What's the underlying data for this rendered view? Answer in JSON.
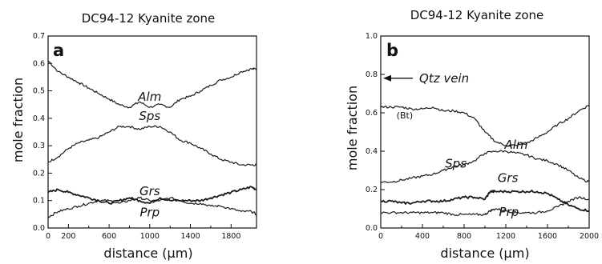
{
  "chart_data": [
    {
      "type": "line",
      "panel_label": "a",
      "title": "DC94-12 Kyanite zone",
      "xlabel": "distance (μm)",
      "ylabel": "mole fraction",
      "xlim": [
        0,
        2050
      ],
      "ylim": [
        0,
        0.7
      ],
      "xticks": [
        "0",
        "200",
        "600",
        "1000",
        "1400",
        "1800"
      ],
      "xtick_values": [
        0,
        200,
        600,
        1000,
        1400,
        1800
      ],
      "xminor_values": [
        400,
        800,
        1200,
        1600
      ],
      "yticks": [
        "0.0",
        "0.1",
        "0.2",
        "0.3",
        "0.4",
        "0.5",
        "0.6",
        "0.7"
      ],
      "ytick_values": [
        0,
        0.1,
        0.2,
        0.3,
        0.4,
        0.5,
        0.6,
        0.7
      ],
      "grid": false,
      "series": [
        {
          "name": "Alm",
          "x": [
            0,
            100,
            200,
            300,
            400,
            500,
            600,
            700,
            800,
            900,
            1000,
            1100,
            1200,
            1300,
            1400,
            1500,
            1600,
            1700,
            1800,
            1900,
            2000,
            2050
          ],
          "values": [
            0.61,
            0.57,
            0.55,
            0.53,
            0.51,
            0.49,
            0.47,
            0.45,
            0.44,
            0.46,
            0.44,
            0.45,
            0.44,
            0.47,
            0.48,
            0.5,
            0.52,
            0.54,
            0.55,
            0.57,
            0.58,
            0.58
          ]
        },
        {
          "name": "Sps",
          "x": [
            0,
            100,
            200,
            300,
            400,
            500,
            600,
            700,
            800,
            900,
            1000,
            1100,
            1200,
            1300,
            1400,
            1500,
            1600,
            1700,
            1800,
            1900,
            2000,
            2050
          ],
          "values": [
            0.24,
            0.26,
            0.29,
            0.31,
            0.32,
            0.33,
            0.35,
            0.37,
            0.37,
            0.36,
            0.37,
            0.37,
            0.35,
            0.32,
            0.31,
            0.29,
            0.27,
            0.25,
            0.24,
            0.23,
            0.23,
            0.23
          ]
        },
        {
          "name": "Grs",
          "x": [
            0,
            100,
            200,
            300,
            400,
            500,
            600,
            700,
            800,
            900,
            1000,
            1100,
            1200,
            1300,
            1400,
            1500,
            1600,
            1700,
            1800,
            1900,
            2000,
            2050
          ],
          "values": [
            0.13,
            0.14,
            0.13,
            0.12,
            0.11,
            0.1,
            0.09,
            0.1,
            0.11,
            0.1,
            0.09,
            0.11,
            0.1,
            0.1,
            0.1,
            0.1,
            0.11,
            0.12,
            0.13,
            0.14,
            0.15,
            0.14
          ]
        },
        {
          "name": "Prp",
          "x": [
            0,
            100,
            200,
            300,
            400,
            500,
            600,
            700,
            800,
            900,
            1000,
            1100,
            1200,
            1300,
            1400,
            1500,
            1600,
            1700,
            1800,
            1900,
            2000,
            2050
          ],
          "values": [
            0.04,
            0.06,
            0.07,
            0.08,
            0.09,
            0.1,
            0.1,
            0.09,
            0.1,
            0.11,
            0.1,
            0.1,
            0.11,
            0.1,
            0.09,
            0.09,
            0.08,
            0.08,
            0.07,
            0.06,
            0.06,
            0.05
          ]
        }
      ]
    },
    {
      "type": "line",
      "panel_label": "b",
      "title": "DC94-12 Kyanite zone",
      "xlabel": "distance (μm)",
      "ylabel": "mole fraction",
      "xlim": [
        0,
        2000
      ],
      "ylim": [
        0,
        1.0
      ],
      "xticks": [
        "0",
        "400",
        "800",
        "1200",
        "1600",
        "2000"
      ],
      "xtick_values": [
        0,
        400,
        800,
        1200,
        1600,
        2000
      ],
      "xminor_values": [
        200,
        600,
        1000,
        1400,
        1800
      ],
      "yticks": [
        "0.0",
        "0.2",
        "0.4",
        "0.6",
        "0.8",
        "1.0"
      ],
      "ytick_values": [
        0,
        0.2,
        0.4,
        0.6,
        0.8,
        1.0
      ],
      "grid": false,
      "annotations": [
        {
          "text": "Qtz vein",
          "y": 0.78,
          "kind": "arrow"
        },
        {
          "text": "(Bt)",
          "x": 230,
          "y": 0.57,
          "kind": "note"
        }
      ],
      "series": [
        {
          "name": "Alm",
          "x": [
            0,
            100,
            200,
            300,
            400,
            500,
            600,
            700,
            800,
            900,
            1000,
            1100,
            1200,
            1300,
            1400,
            1500,
            1600,
            1700,
            1800,
            1900,
            2000
          ],
          "values": [
            0.63,
            0.63,
            0.63,
            0.62,
            0.62,
            0.63,
            0.61,
            0.61,
            0.6,
            0.57,
            0.5,
            0.45,
            0.43,
            0.43,
            0.44,
            0.47,
            0.5,
            0.54,
            0.57,
            0.61,
            0.64
          ]
        },
        {
          "name": "Sps",
          "x": [
            0,
            100,
            200,
            300,
            400,
            500,
            600,
            700,
            800,
            900,
            1000,
            1100,
            1200,
            1300,
            1400,
            1500,
            1600,
            1700,
            1800,
            1900,
            2000
          ],
          "values": [
            0.24,
            0.24,
            0.25,
            0.26,
            0.27,
            0.28,
            0.3,
            0.32,
            0.33,
            0.35,
            0.39,
            0.4,
            0.4,
            0.39,
            0.38,
            0.36,
            0.35,
            0.33,
            0.3,
            0.26,
            0.24
          ]
        },
        {
          "name": "Grs",
          "x": [
            0,
            100,
            200,
            300,
            400,
            500,
            600,
            700,
            800,
            900,
            1000,
            1050,
            1100,
            1200,
            1300,
            1400,
            1500,
            1600,
            1700,
            1800,
            1900,
            2000
          ],
          "values": [
            0.14,
            0.14,
            0.13,
            0.13,
            0.14,
            0.14,
            0.14,
            0.15,
            0.16,
            0.16,
            0.15,
            0.19,
            0.19,
            0.19,
            0.19,
            0.19,
            0.19,
            0.18,
            0.15,
            0.12,
            0.1,
            0.09
          ]
        },
        {
          "name": "Prp",
          "x": [
            0,
            100,
            200,
            300,
            400,
            500,
            600,
            700,
            800,
            900,
            1000,
            1050,
            1100,
            1200,
            1300,
            1400,
            1500,
            1600,
            1700,
            1800,
            1900,
            2000
          ],
          "values": [
            0.08,
            0.08,
            0.08,
            0.08,
            0.08,
            0.08,
            0.08,
            0.07,
            0.07,
            0.07,
            0.07,
            0.09,
            0.1,
            0.09,
            0.08,
            0.08,
            0.08,
            0.09,
            0.11,
            0.14,
            0.16,
            0.15
          ]
        }
      ]
    }
  ],
  "series_colors": {
    "line": "#1a1a1a"
  }
}
